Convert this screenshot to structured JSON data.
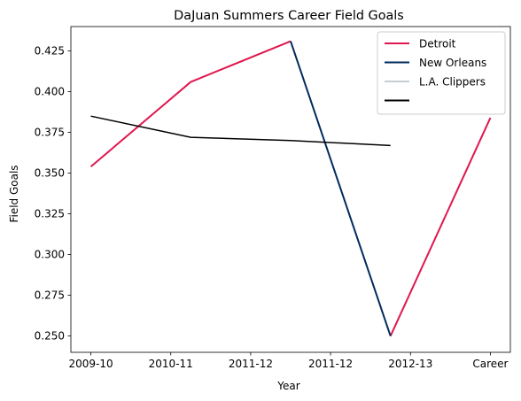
{
  "chart_data": {
    "type": "line",
    "title": "DaJuan Summers Career Field Goals",
    "xlabel": "Year",
    "ylabel": "Field Goals",
    "categories": [
      "2009-10",
      "2010-11",
      "2011-12",
      "2011-12",
      "2012-13",
      "Career"
    ],
    "ylim": [
      0.24,
      0.44
    ],
    "yticks": [
      0.25,
      0.275,
      0.3,
      0.325,
      0.35,
      0.375,
      0.4,
      0.425
    ],
    "ytick_labels": [
      "0.250",
      "0.275",
      "0.300",
      "0.325",
      "0.350",
      "0.375",
      "0.400",
      "0.425"
    ],
    "series": [
      {
        "name": "Detroit",
        "color": "#e0174f",
        "x": [
          0,
          1.25,
          2.5
        ],
        "values": [
          0.354,
          0.406,
          0.431
        ]
      },
      {
        "name": "Detroit",
        "color": "#e0174f",
        "x": [
          3.75,
          5
        ],
        "values": [
          0.25,
          0.384
        ],
        "no_legend": true
      },
      {
        "name": "New Orleans",
        "color": "#002b5c",
        "x": [
          2.5,
          3.75
        ],
        "values": [
          0.431,
          0.25
        ]
      },
      {
        "name": "L.A. Clippers",
        "color": "#c4ced4",
        "x": [],
        "values": []
      },
      {
        "name": "",
        "color": "#000000",
        "x": [
          0,
          1.25,
          2.5,
          3.75
        ],
        "values": [
          0.385,
          0.372,
          0.37,
          0.367
        ]
      }
    ],
    "grid": false,
    "legend_position": "top-right"
  }
}
